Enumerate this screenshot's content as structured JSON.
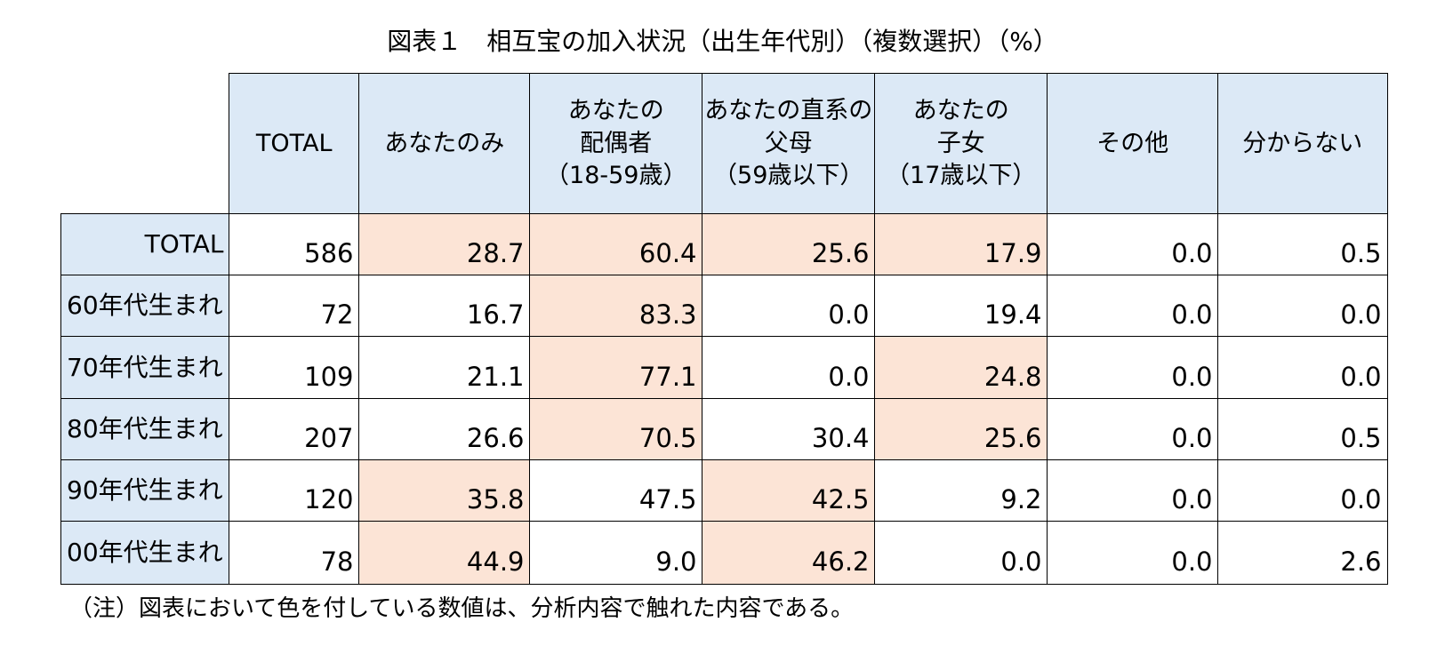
{
  "title": "図表１　相互宝の加入状況（出生年代別）（複数選択）（%）",
  "note": "（注）図表において色を付している数値は、分析内容で触れた内容である。",
  "chart_data": {
    "type": "table",
    "title": "図表１　相互宝の加入状況（出生年代別）（複数選択）（%）",
    "columns": [
      [
        "TOTAL"
      ],
      [
        "あなたのみ"
      ],
      [
        "あなたの",
        "配偶者",
        "（18-59歳）"
      ],
      [
        "あなたの直系の",
        "父母",
        "（59歳以下）"
      ],
      [
        "あなたの",
        "子女",
        "（17歳以下）"
      ],
      [
        "その他"
      ],
      [
        "分からない"
      ]
    ],
    "rows": [
      {
        "label": "TOTAL",
        "values": [
          "586",
          "28.7",
          "60.4",
          "25.6",
          "17.9",
          "0.0",
          "0.5"
        ],
        "highlight": [
          false,
          true,
          true,
          true,
          true,
          false,
          false
        ]
      },
      {
        "label": "60年代生まれ",
        "values": [
          "72",
          "16.7",
          "83.3",
          "0.0",
          "19.4",
          "0.0",
          "0.0"
        ],
        "highlight": [
          false,
          false,
          true,
          false,
          false,
          false,
          false
        ]
      },
      {
        "label": "70年代生まれ",
        "values": [
          "109",
          "21.1",
          "77.1",
          "0.0",
          "24.8",
          "0.0",
          "0.0"
        ],
        "highlight": [
          false,
          false,
          true,
          false,
          true,
          false,
          false
        ]
      },
      {
        "label": "80年代生まれ",
        "values": [
          "207",
          "26.6",
          "70.5",
          "30.4",
          "25.6",
          "0.0",
          "0.5"
        ],
        "highlight": [
          false,
          false,
          true,
          false,
          true,
          false,
          false
        ]
      },
      {
        "label": "90年代生まれ",
        "values": [
          "120",
          "35.8",
          "47.5",
          "42.5",
          "9.2",
          "0.0",
          "0.0"
        ],
        "highlight": [
          false,
          true,
          false,
          true,
          false,
          false,
          false
        ]
      },
      {
        "label": "00年代生まれ",
        "values": [
          "78",
          "44.9",
          "9.0",
          "46.2",
          "0.0",
          "0.0",
          "2.6"
        ],
        "highlight": [
          false,
          true,
          false,
          true,
          false,
          false,
          false
        ]
      }
    ],
    "colors": {
      "header_bg": "#dce9f6",
      "highlight_bg": "#fce4d6"
    }
  }
}
